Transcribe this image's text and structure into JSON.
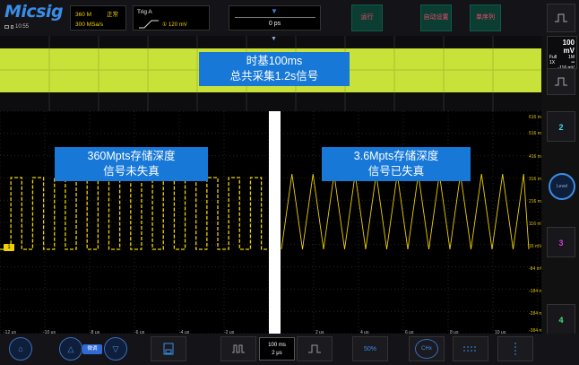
{
  "brand": {
    "logo": "Micsig",
    "time": "10:55"
  },
  "acquisition": {
    "memory": "360 M",
    "mode": "正常",
    "rate": "300 MSa/s"
  },
  "trigger": {
    "title": "Trig A",
    "level": "① 120 mV"
  },
  "position": {
    "value": "0 ps"
  },
  "top_buttons": {
    "run": "运行",
    "auto": "自动设置",
    "sequence": "单序列"
  },
  "overview": {
    "annotation_line1": "时基100ms",
    "annotation_line2": "总共采集1.2s信号"
  },
  "annotations": {
    "left_line1": "360Mpts存储深度",
    "left_line2": "信号未失真",
    "right_line1": "3.6Mpts存储深度",
    "right_line2": "信号已失真"
  },
  "channel_marker": "1",
  "y_axis_labels": [
    "616 mV",
    "516 mV",
    "416 mV",
    "316 mV",
    "216 mV",
    "116 mV",
    "16 mV",
    "-84 mV",
    "-184 mV",
    "-284 mV",
    "-384 mV"
  ],
  "x_axis_labels": [
    "-12 μs",
    "-10 μs",
    "-8 μs",
    "-6 μs",
    "-4 μs",
    "-2 μs",
    "2 μs",
    "4 μs",
    "6 μs",
    "8 μs",
    "10 μs"
  ],
  "ch1_panel": {
    "scale": "100 mV",
    "bw": "Full",
    "impedance": "1M",
    "probe": "1X",
    "coupling": "═",
    "offset": "-116 mV"
  },
  "channels": {
    "ch2": "2",
    "ch3": "3",
    "ch4": "4"
  },
  "level_knob": "Level",
  "bottom": {
    "fine": "微调",
    "timebase_line1": "100 ms",
    "timebase_line2": "2 μs",
    "fifty": "50%",
    "chx": "CHx"
  },
  "colors": {
    "ch1": "#f0d200",
    "overview_band": "#c9e23a",
    "annotation": "#1778d8",
    "accent": "#3a8ee8"
  }
}
